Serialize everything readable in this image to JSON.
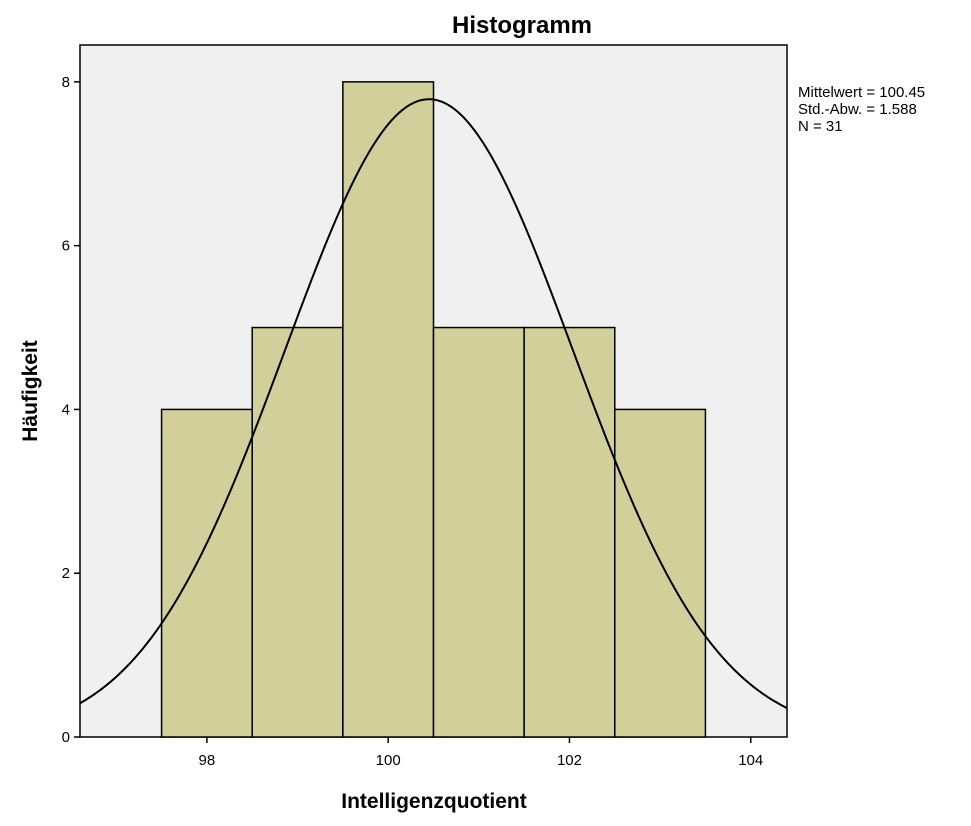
{
  "chart_data": {
    "type": "bar",
    "title": "Histogramm",
    "xlabel": "Intelligenzquotient",
    "ylabel": "Häufigkeit",
    "bins": [
      {
        "from": 97.5,
        "to": 98.5,
        "value": 4
      },
      {
        "from": 98.5,
        "to": 99.5,
        "value": 5
      },
      {
        "from": 99.5,
        "to": 100.5,
        "value": 8
      },
      {
        "from": 100.5,
        "to": 101.5,
        "value": 5
      },
      {
        "from": 101.5,
        "to": 102.5,
        "value": 5
      },
      {
        "from": 102.5,
        "to": 103.5,
        "value": 4
      }
    ],
    "xlim": [
      96.6,
      104.4
    ],
    "ylim": [
      0,
      8.45
    ],
    "xticks": [
      98,
      100,
      102,
      104
    ],
    "yticks": [
      0,
      2,
      4,
      6,
      8
    ],
    "normal_curve": {
      "mean": 100.45,
      "sd": 1.588,
      "n": 31,
      "bin_width": 1
    },
    "stats": [
      "Mittelwert = 100.45",
      "Std.-Abw. = 1.588",
      "N = 31"
    ],
    "grid": false,
    "bar_color": "#d3cf9a",
    "plot_background": "#f0f0f0"
  }
}
